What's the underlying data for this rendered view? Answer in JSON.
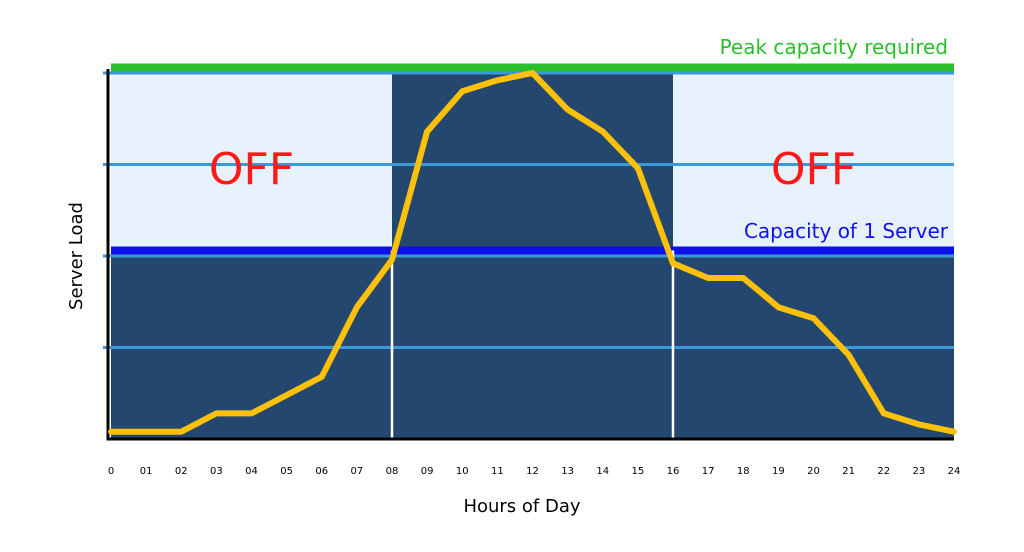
{
  "chart_data": {
    "type": "line",
    "xlabel": "Hours of Day",
    "ylabel": "Server Load",
    "x_tick_labels": [
      "0",
      "01",
      "02",
      "03",
      "04",
      "05",
      "06",
      "07",
      "08",
      "09",
      "10",
      "11",
      "12",
      "13",
      "14",
      "15",
      "16",
      "17",
      "18",
      "19",
      "20",
      "21",
      "22",
      "23",
      "24"
    ],
    "xlim": [
      0,
      24
    ],
    "ylim": [
      0,
      100
    ],
    "grid_y_values": [
      25,
      50,
      75,
      100
    ],
    "series": [
      {
        "x": [
          0,
          1,
          2,
          3,
          4,
          5,
          6,
          7,
          8,
          9,
          10,
          11,
          12,
          13,
          14,
          15,
          16,
          17,
          18,
          19,
          20,
          21,
          22,
          23,
          24
        ],
        "values": [
          2,
          2,
          2,
          7,
          7,
          12,
          17,
          36,
          49,
          84,
          95,
          98,
          100,
          90,
          84,
          74,
          48,
          44,
          44,
          36,
          33,
          23,
          7,
          4,
          2
        ],
        "color": "#ffc107"
      }
    ],
    "reference_lines": [
      {
        "label": "Peak capacity required",
        "value": 101.5,
        "color": "#2bbf2b"
      },
      {
        "label": "Capacity of 1 Server",
        "value": 51.5,
        "color": "#0b10e6"
      }
    ],
    "regions": [
      {
        "label": "OFF",
        "x_start": 0,
        "x_end": 8,
        "y_start": 50,
        "y_end": 100
      },
      {
        "label": "OFF",
        "x_start": 16,
        "x_end": 24,
        "y_start": 50,
        "y_end": 100
      }
    ],
    "on_period_markers": [
      8,
      16
    ],
    "colors": {
      "background_dark": "#24476f",
      "region_light": "#e6f1fc",
      "grid": "#3a9ad9",
      "line": "#ffc107",
      "marker": "#ffffff"
    }
  }
}
